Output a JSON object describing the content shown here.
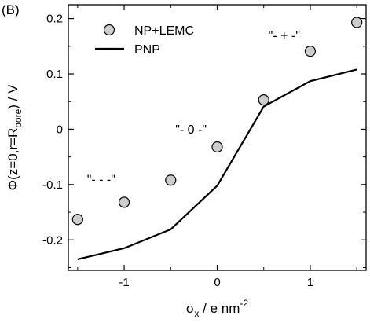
{
  "panel_label": "(B)",
  "chart_data": {
    "type": "line",
    "title": "",
    "xlabel": {
      "main": "σ",
      "sub": "x",
      "rest": " / e nm",
      "sup": "-2"
    },
    "ylabel": {
      "main": "Φ(z=0,r=R",
      "sub": "pore",
      "rest": ") / V"
    },
    "xlim": [
      -1.6,
      1.6
    ],
    "ylim": [
      -0.255,
      0.225
    ],
    "x_ticks": [
      -1,
      0,
      1
    ],
    "x_tick_labels": [
      "-1",
      "0",
      "1"
    ],
    "y_ticks": [
      -0.2,
      -0.1,
      0,
      0.1,
      0.2
    ],
    "y_tick_labels": [
      "-0.2",
      "-0.1",
      "0",
      "0.1",
      "0.2"
    ],
    "grid": false,
    "legend_position": "top-left",
    "series": [
      {
        "name": "NP+LEMC",
        "style": "markers",
        "marker": "circle",
        "marker_fill": "#cccccc",
        "marker_edge": "#000000",
        "x": [
          -1.5,
          -1.0,
          -0.5,
          0.0,
          0.5,
          1.0,
          1.5
        ],
        "y": [
          -0.163,
          -0.132,
          -0.092,
          -0.032,
          0.053,
          0.141,
          0.193
        ]
      },
      {
        "name": "PNP",
        "style": "line",
        "color": "#000000",
        "x": [
          -1.5,
          -1.0,
          -0.5,
          0.0,
          0.5,
          1.0,
          1.5
        ],
        "y": [
          -0.235,
          -0.215,
          -0.181,
          -0.102,
          0.041,
          0.087,
          0.108
        ]
      }
    ],
    "annotations": [
      {
        "text": "\"- - -\"",
        "x": -1.4,
        "y": -0.098
      },
      {
        "text": "\"- 0 -\"",
        "x": -0.45,
        "y": -0.008
      },
      {
        "text": "\"- + -\"",
        "x": 0.55,
        "y": 0.162
      }
    ]
  }
}
